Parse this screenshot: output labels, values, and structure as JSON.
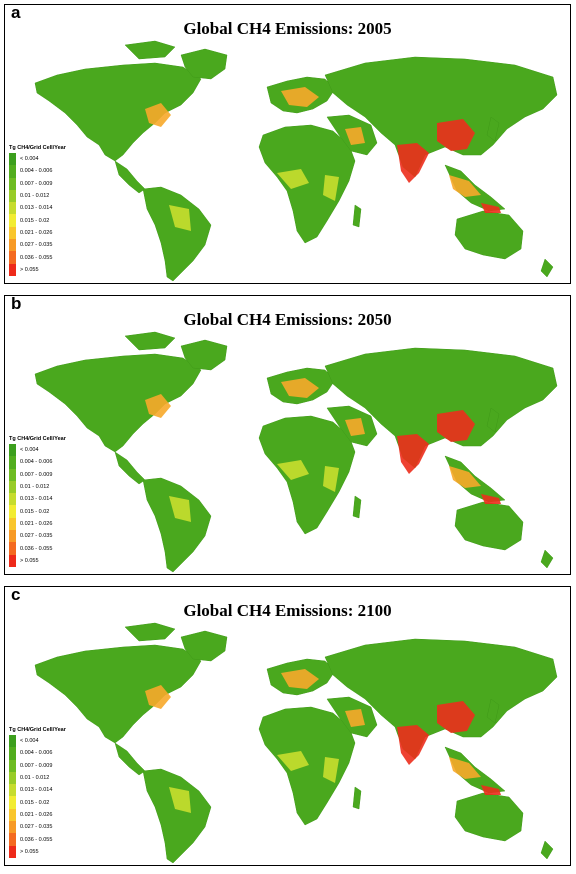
{
  "panels": [
    {
      "letter": "a",
      "title": "Global CH4 Emissions: 2005"
    },
    {
      "letter": "b",
      "title": "Global CH4 Emissions: 2050"
    },
    {
      "letter": "c",
      "title": "Global CH4 Emissions: 2100"
    }
  ],
  "legend": {
    "title": "Tg CH4/Grid Cell/Year",
    "classes": [
      {
        "label": "< 0.004",
        "color": "#3c9f1d"
      },
      {
        "label": "0.004 - 0.006",
        "color": "#52ad1e"
      },
      {
        "label": "0.007 - 0.009",
        "color": "#6ebc22"
      },
      {
        "label": "0.01 - 0.012",
        "color": "#98cc28"
      },
      {
        "label": "0.013 - 0.014",
        "color": "#c6dc2e"
      },
      {
        "label": "0.015 - 0.02",
        "color": "#f2ec32"
      },
      {
        "label": "0.021 - 0.026",
        "color": "#f9c62c"
      },
      {
        "label": "0.027 - 0.035",
        "color": "#f79a26"
      },
      {
        "label": "0.036 - 0.055",
        "color": "#f46a20"
      },
      {
        "label": "> 0.055",
        "color": "#ee2a1a"
      }
    ]
  },
  "colors": {
    "land": "#4aa81e",
    "medium": "#c8de2e",
    "high": "#f7a82a",
    "veryhigh": "#ec2e1c"
  }
}
